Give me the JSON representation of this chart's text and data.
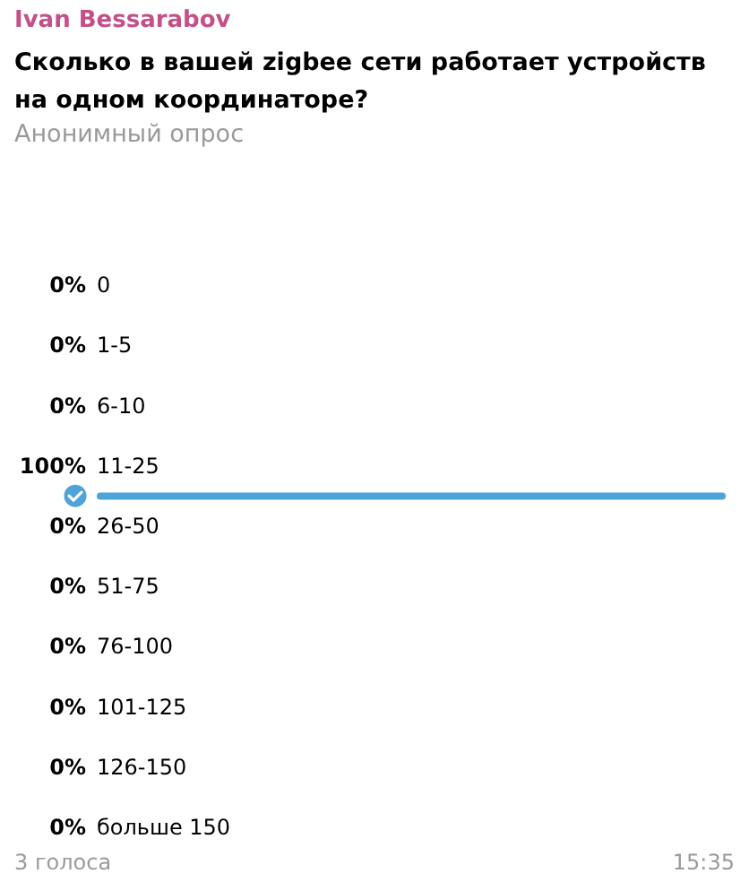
{
  "chart_data": {
    "type": "bar",
    "orientation": "horizontal",
    "title": "Сколько в вашей zigbee сети работает устройств на одном координаторе?",
    "subtitle": "Анонимный опрос",
    "annotations": [
      "Ivan Bessarabov",
      "3 голоса",
      "15:35"
    ],
    "categories": [
      "0",
      "1-5",
      "6-10",
      "11-25",
      "26-50",
      "51-75",
      "76-100",
      "101-125",
      "126-150",
      "больше 150"
    ],
    "values": [
      0,
      0,
      0,
      100,
      0,
      0,
      0,
      0,
      0,
      0
    ],
    "value_labels": [
      "0%",
      "0%",
      "0%",
      "100%",
      "0%",
      "0%",
      "0%",
      "0%",
      "0%",
      "0%"
    ],
    "color": "#4ea4d9"
  }
}
